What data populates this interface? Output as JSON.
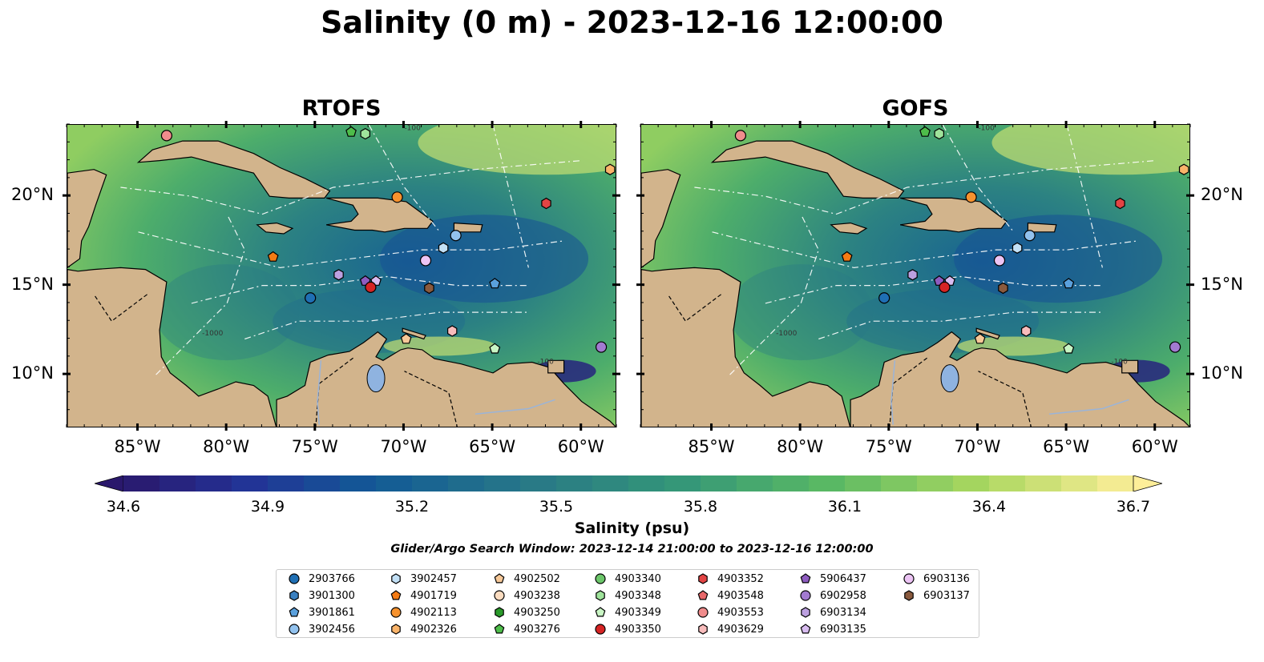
{
  "title": "Salinity (0 m) - 2023-12-16 12:00:00",
  "panels": [
    {
      "title": "RTOFS"
    },
    {
      "title": "GOFS"
    }
  ],
  "axes": {
    "lon_labels": [
      "85°W",
      "80°W",
      "75°W",
      "70°W",
      "65°W",
      "60°W"
    ],
    "lat_labels": [
      "20°N",
      "15°N",
      "10°N"
    ],
    "lon_range": [
      -89,
      -58
    ],
    "lat_range": [
      7,
      24
    ]
  },
  "colorbar": {
    "label": "Salinity (psu)",
    "range": [
      34.6,
      36.7
    ],
    "ticks": [
      "34.6",
      "34.9",
      "35.2",
      "35.5",
      "35.8",
      "36.1",
      "36.4",
      "36.7"
    ],
    "colormap": "haline",
    "extend": "both"
  },
  "search_window": "Glider/Argo Search Window: 2023-12-14 21:00:00 to 2023-12-16 12:00:00",
  "colors": {
    "land": "#d2b48c",
    "pacific": "#2a1a6a",
    "lake": "#8fb3e0",
    "contour": "#ffffff"
  },
  "contour_labels": [
    "-100",
    "-1000"
  ],
  "legend": [
    {
      "id": "2903766",
      "marker": "circle",
      "color": "#1f6fb4"
    },
    {
      "id": "3901300",
      "marker": "hexagon",
      "color": "#3a80c0"
    },
    {
      "id": "3901861",
      "marker": "pentagon",
      "color": "#5aa0dc"
    },
    {
      "id": "3902456",
      "marker": "circle",
      "color": "#92c2ee"
    },
    {
      "id": "3902457",
      "marker": "hexagon",
      "color": "#c2e0f6"
    },
    {
      "id": "4901719",
      "marker": "pentagon",
      "color": "#f47b14"
    },
    {
      "id": "4902113",
      "marker": "circle",
      "color": "#f6922e"
    },
    {
      "id": "4902326",
      "marker": "hexagon",
      "color": "#fab46a"
    },
    {
      "id": "4902502",
      "marker": "pentagon",
      "color": "#f6c898"
    },
    {
      "id": "4903238",
      "marker": "circle",
      "color": "#fbdcc0"
    },
    {
      "id": "4903250",
      "marker": "hexagon",
      "color": "#2a9a2a"
    },
    {
      "id": "4903276",
      "marker": "pentagon",
      "color": "#4ebd4a"
    },
    {
      "id": "4903340",
      "marker": "circle",
      "color": "#6cc66a"
    },
    {
      "id": "4903348",
      "marker": "hexagon",
      "color": "#9fe39b"
    },
    {
      "id": "4903349",
      "marker": "pentagon",
      "color": "#c9f5c4"
    },
    {
      "id": "4903350",
      "marker": "circle",
      "color": "#d62424"
    },
    {
      "id": "4903352",
      "marker": "hexagon",
      "color": "#e24444"
    },
    {
      "id": "4903548",
      "marker": "pentagon",
      "color": "#e8686a"
    },
    {
      "id": "4903553",
      "marker": "circle",
      "color": "#f08c8c"
    },
    {
      "id": "4903629",
      "marker": "hexagon",
      "color": "#f8bcbc"
    },
    {
      "id": "5906437",
      "marker": "pentagon",
      "color": "#8e5cc0"
    },
    {
      "id": "6902958",
      "marker": "circle",
      "color": "#a27ad0"
    },
    {
      "id": "6903134",
      "marker": "hexagon",
      "color": "#bca0e0"
    },
    {
      "id": "6903135",
      "marker": "pentagon",
      "color": "#d8bcf0"
    },
    {
      "id": "6903136",
      "marker": "circle",
      "color": "#ecc4f4"
    },
    {
      "id": "6903137",
      "marker": "hexagon",
      "color": "#8a5a3e"
    }
  ],
  "floats": [
    {
      "id": "4903553",
      "lon": -83.4,
      "lat": 23.4
    },
    {
      "id": "4903276",
      "lon": -73.0,
      "lat": 23.6
    },
    {
      "id": "4903348",
      "lon": -72.2,
      "lat": 23.5
    },
    {
      "id": "4902326",
      "lon": -58.4,
      "lat": 21.5
    },
    {
      "id": "4902113",
      "lon": -70.4,
      "lat": 19.95
    },
    {
      "id": "4903352",
      "lon": -62.0,
      "lat": 19.6
    },
    {
      "id": "3902456",
      "lon": -67.1,
      "lat": 17.8
    },
    {
      "id": "3902457",
      "lon": -67.8,
      "lat": 17.1
    },
    {
      "id": "4901719",
      "lon": -77.4,
      "lat": 16.6
    },
    {
      "id": "6903136",
      "lon": -68.8,
      "lat": 16.4
    },
    {
      "id": "6903134",
      "lon": -73.7,
      "lat": 15.6
    },
    {
      "id": "5906437",
      "lon": -72.2,
      "lat": 15.25
    },
    {
      "id": "6903135",
      "lon": -71.6,
      "lat": 15.25
    },
    {
      "id": "4903350",
      "lon": -71.9,
      "lat": 14.9
    },
    {
      "id": "3901861",
      "lon": -64.9,
      "lat": 15.1
    },
    {
      "id": "6903137",
      "lon": -68.6,
      "lat": 14.85
    },
    {
      "id": "2903766",
      "lon": -75.3,
      "lat": 14.3
    },
    {
      "id": "4903629",
      "lon": -67.3,
      "lat": 12.45
    },
    {
      "id": "4903349",
      "lon": -64.9,
      "lat": 11.45
    },
    {
      "id": "6902958",
      "lon": -58.9,
      "lat": 11.55
    },
    {
      "id": "4902502",
      "lon": -69.9,
      "lat": 12.0
    }
  ]
}
